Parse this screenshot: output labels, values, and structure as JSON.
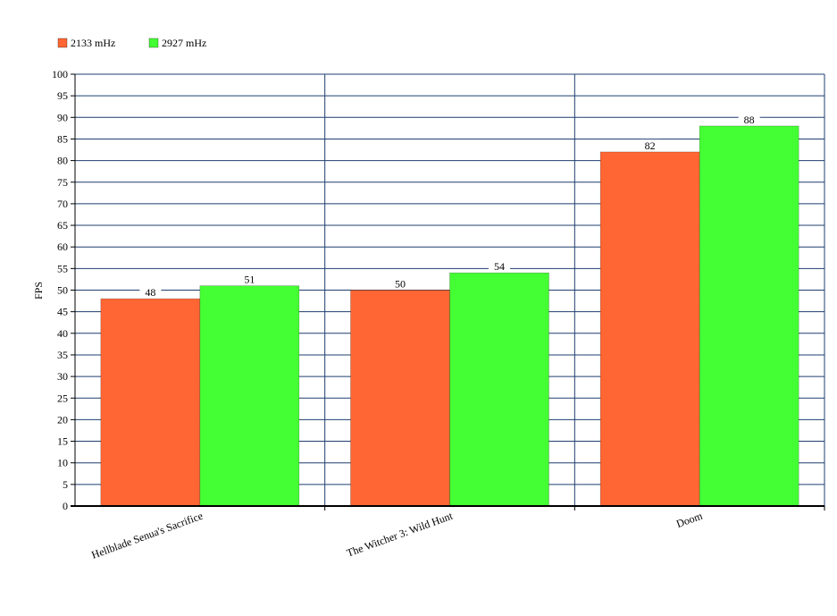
{
  "chart_data": {
    "type": "bar",
    "categories": [
      "Hellblade Senua's Sacrifice",
      "The Witcher 3: Wild Hunt",
      "Doom"
    ],
    "series": [
      {
        "name": "2133 mHz",
        "values": [
          48,
          50,
          82
        ],
        "color": "#ff6633"
      },
      {
        "name": "2927 mHz",
        "values": [
          51,
          54,
          88
        ],
        "color": "#44ff33"
      }
    ],
    "title": "",
    "xlabel": "",
    "ylabel": "FPS",
    "ylim": [
      0,
      100
    ],
    "ytick_step": 5,
    "grid": true,
    "legend": "top-left",
    "colors": {
      "grid": "#1f3f6f",
      "axis": "#000000",
      "label_bg": "#ffffff"
    }
  }
}
